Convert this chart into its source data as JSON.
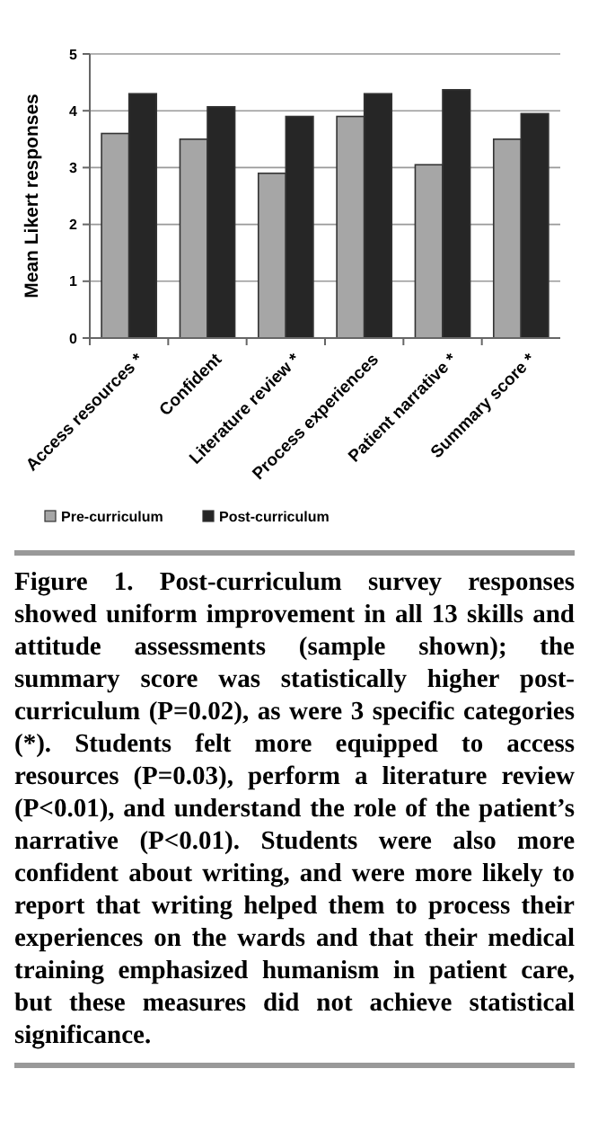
{
  "chart_data": {
    "type": "bar",
    "ylabel": "Mean Likert responses",
    "categories": [
      "Access resources *",
      "Confident",
      "Literature review *",
      "Process experiences",
      "Patient narrative *",
      "Summary score *"
    ],
    "series": [
      {
        "name": "Pre-curriculum",
        "color": "#a6a6a6",
        "values": [
          3.6,
          3.5,
          2.9,
          3.9,
          3.05,
          3.5
        ]
      },
      {
        "name": "Post-curriculum",
        "color": "#262626",
        "values": [
          4.3,
          4.07,
          3.9,
          4.3,
          4.37,
          3.95
        ]
      }
    ],
    "ylim": [
      0,
      5
    ],
    "yticks": [
      0,
      1,
      2,
      3,
      4,
      5
    ],
    "grid": "y",
    "legend": "bottom",
    "annotations": [
      "Figure 1. Post-curriculum survey responses showed uniform improvement in all 13 skills and attitude assessments (sample shown); the summary score was statistically higher post-curriculum (P=0.02), as were 3 specific categories (*). Students felt more equipped to access resources (P=0.03), perform a literature review (P<0.01), and understand the role of the patient’s narrative (P<0.01). Students were also more confident about writing, and were more likely to report that writing helped them to process their experiences on the wards and that their medical training emphasized humanism in patient care, but these measures did not achieve statistical significance."
    ]
  }
}
